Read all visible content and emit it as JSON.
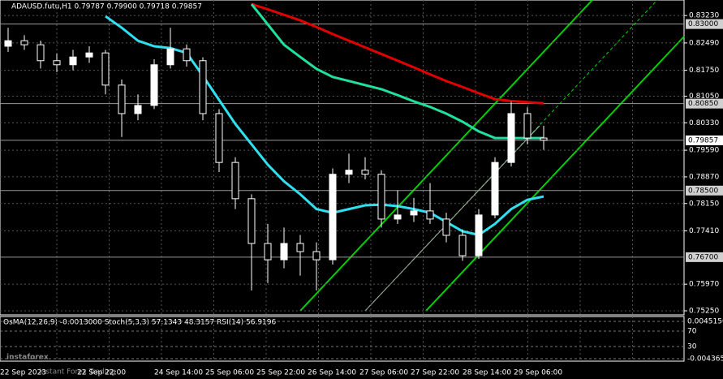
{
  "chart_data": {
    "type": "candlestick",
    "title": "ADAUSD.futu,H1  0.79787 0.79900 0.79718 0.79857",
    "ylim": [
      0.7514,
      0.8365
    ],
    "yticks": [
      {
        "value": 0.8323,
        "label": "0.83230"
      },
      {
        "value": 0.8249,
        "label": "0.82490"
      },
      {
        "value": 0.8175,
        "label": "0.81750"
      },
      {
        "value": 0.8105,
        "label": "0.81050"
      },
      {
        "value": 0.8033,
        "label": "0.80330"
      },
      {
        "value": 0.7959,
        "label": "0.79590"
      },
      {
        "value": 0.7887,
        "label": "0.78870"
      },
      {
        "value": 0.7815,
        "label": "0.78150"
      },
      {
        "value": 0.7741,
        "label": "0.77410"
      },
      {
        "value": 0.7597,
        "label": "0.75970"
      },
      {
        "value": 0.7525,
        "label": "0.75250"
      }
    ],
    "grid": true,
    "levels": [
      {
        "value": 0.83,
        "label": "0.83000"
      },
      {
        "value": 0.8085,
        "label": "0.80850"
      },
      {
        "value": 0.79857,
        "label": "0.79857"
      },
      {
        "value": 0.785,
        "label": "0.78500"
      },
      {
        "value": 0.767,
        "label": "0.76700"
      }
    ],
    "x_labels": [
      "22 Sep 2023",
      "22 Sep 22:00",
      "24 Sep 14:00",
      "25 Sep 06:00",
      "25 Sep 22:00",
      "26 Sep 14:00",
      "27 Sep 06:00",
      "27 Sep 22:00",
      "28 Sep 14:00",
      "29 Sep 06:00"
    ],
    "open": [
      0.824,
      0.8255,
      0.8244,
      0.8201,
      0.819,
      0.8211,
      0.8222,
      0.8135,
      0.8058,
      0.808,
      0.819,
      0.8233,
      0.8201,
      0.8058,
      0.7926,
      0.7828,
      0.7707,
      0.7663,
      0.7707,
      0.7685,
      0.7663,
      0.7894,
      0.7905,
      0.7894,
      0.7773,
      0.7784,
      0.7795,
      0.7773,
      0.7729,
      0.7674,
      0.7784,
      0.7926,
      0.8058,
      0.7992
    ],
    "high": [
      0.829,
      0.827,
      0.8255,
      0.822,
      0.823,
      0.824,
      0.823,
      0.815,
      0.811,
      0.8205,
      0.829,
      0.8245,
      0.821,
      0.807,
      0.794,
      0.784,
      0.776,
      0.775,
      0.773,
      0.771,
      0.791,
      0.795,
      0.794,
      0.7905,
      0.785,
      0.783,
      0.787,
      0.779,
      0.7745,
      0.78,
      0.794,
      0.809,
      0.8075,
      0.8025
    ],
    "low": [
      0.8225,
      0.823,
      0.818,
      0.817,
      0.8175,
      0.8195,
      0.811,
      0.7995,
      0.804,
      0.807,
      0.818,
      0.8185,
      0.804,
      0.79,
      0.78,
      0.758,
      0.76,
      0.764,
      0.762,
      0.758,
      0.765,
      0.787,
      0.788,
      0.775,
      0.776,
      0.7765,
      0.776,
      0.771,
      0.766,
      0.7665,
      0.7775,
      0.7915,
      0.7975,
      0.796
    ],
    "close": [
      0.8255,
      0.8244,
      0.8201,
      0.819,
      0.8211,
      0.8222,
      0.8135,
      0.8058,
      0.808,
      0.819,
      0.8233,
      0.8201,
      0.8058,
      0.7926,
      0.7828,
      0.7707,
      0.7663,
      0.7707,
      0.7685,
      0.7663,
      0.7894,
      0.7905,
      0.7894,
      0.7773,
      0.7784,
      0.7795,
      0.7773,
      0.7729,
      0.7674,
      0.7784,
      0.7926,
      0.8058,
      0.7992,
      0.7986
    ],
    "series": [
      {
        "color": "#e00000",
        "values": [
          null,
          null,
          null,
          null,
          null,
          null,
          null,
          null,
          null,
          null,
          null,
          null,
          null,
          null,
          null,
          0.8354,
          0.834,
          0.8325,
          0.831,
          0.8292,
          0.8273,
          0.8255,
          0.8237,
          0.8219,
          0.8201,
          0.8183,
          0.8164,
          0.8146,
          0.813,
          0.8113,
          0.8097,
          0.8092,
          0.8089,
          0.8086
        ]
      },
      {
        "color": "#20e0a0",
        "values": [
          null,
          null,
          null,
          null,
          null,
          null,
          null,
          null,
          null,
          null,
          null,
          null,
          null,
          null,
          null,
          0.8354,
          0.8299,
          0.8244,
          0.8211,
          0.8179,
          0.8157,
          0.8146,
          0.8135,
          0.8124,
          0.8108,
          0.8091,
          0.8076,
          0.8058,
          0.8036,
          0.801,
          0.7992,
          0.7992,
          0.7992,
          0.7992
        ]
      },
      {
        "color": "#30e0f0",
        "values": [
          null,
          null,
          null,
          null,
          null,
          null,
          0.8321,
          0.829,
          0.8255,
          0.824,
          0.8235,
          0.8222,
          0.816,
          0.8095,
          0.803,
          0.7975,
          0.792,
          0.7875,
          0.784,
          0.78,
          0.779,
          0.78,
          0.781,
          0.7812,
          0.7808,
          0.78,
          0.779,
          0.7765,
          0.774,
          0.773,
          0.776,
          0.78,
          0.7825,
          0.7834
        ]
      }
    ],
    "indicator": {
      "title": "OsMA(12,26,9) -0.0013000  Stoch(5,3,3) 57.1343 48.3157  RSI(14) 56.9196",
      "labels": [
        "0.0045156",
        "70",
        "30",
        "-0.0043655"
      ]
    },
    "watermark": "instaforex",
    "watermark_sub": "Instant Forex Trading"
  }
}
